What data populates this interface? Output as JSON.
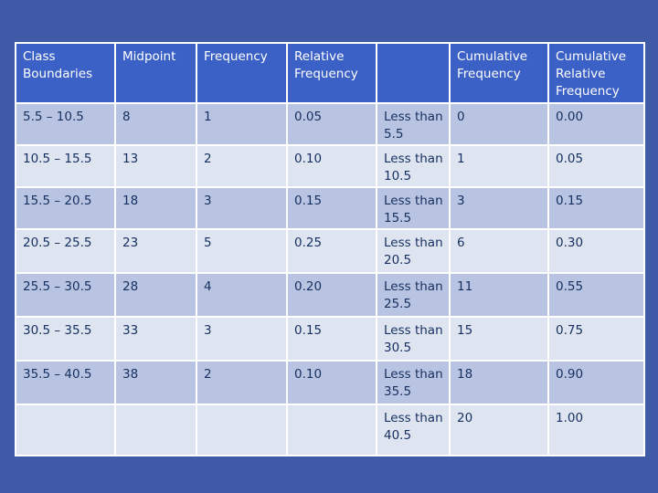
{
  "table": {
    "headers": [
      "Class Boundaries",
      "Midpoint",
      "Frequency",
      "Relative Frequency",
      "",
      "Cumulative Frequency",
      "Cumulative Relative Frequency"
    ],
    "rows": [
      [
        "5.5 – 10.5",
        "8",
        "1",
        "0.05",
        "Less than 5.5",
        "0",
        "0.00"
      ],
      [
        "10.5 – 15.5",
        "13",
        "2",
        "0.10",
        "Less than 10.5",
        "1",
        "0.05"
      ],
      [
        "15.5 – 20.5",
        "18",
        "3",
        "0.15",
        "Less than 15.5",
        "3",
        "0.15"
      ],
      [
        "20.5 – 25.5",
        "23",
        "5",
        "0.25",
        "Less than 20.5",
        "6",
        "0.30"
      ],
      [
        "25.5 – 30.5",
        "28",
        "4",
        "0.20",
        "Less than 25.5",
        "11",
        "0.55"
      ],
      [
        "30.5 – 35.5",
        "33",
        "3",
        "0.15",
        "Less than 30.5",
        "15",
        "0.75"
      ],
      [
        "35.5 – 40.5",
        "38",
        "2",
        "0.10",
        "Less than 35.5",
        "18",
        "0.90"
      ],
      [
        "",
        "",
        "",
        "",
        "Less than 40.5",
        "20",
        "1.00"
      ]
    ]
  }
}
